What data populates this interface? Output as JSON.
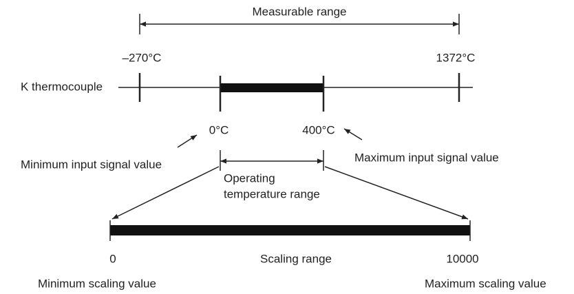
{
  "title": "Measurable range",
  "thermocouple": {
    "label": "K thermocouple",
    "min": "–270°C",
    "max": "1372°C"
  },
  "input": {
    "min": "0°C",
    "max": "400°C",
    "min_label": "Minimum input signal value",
    "max_label": "Maximum input signal value"
  },
  "operating_range": [
    "Operating",
    "temperature range"
  ],
  "scaling": {
    "min": "0",
    "label": "Scaling range",
    "max": "10000",
    "min_label": "Minimum scaling value",
    "max_label": "Maximum scaling value"
  }
}
